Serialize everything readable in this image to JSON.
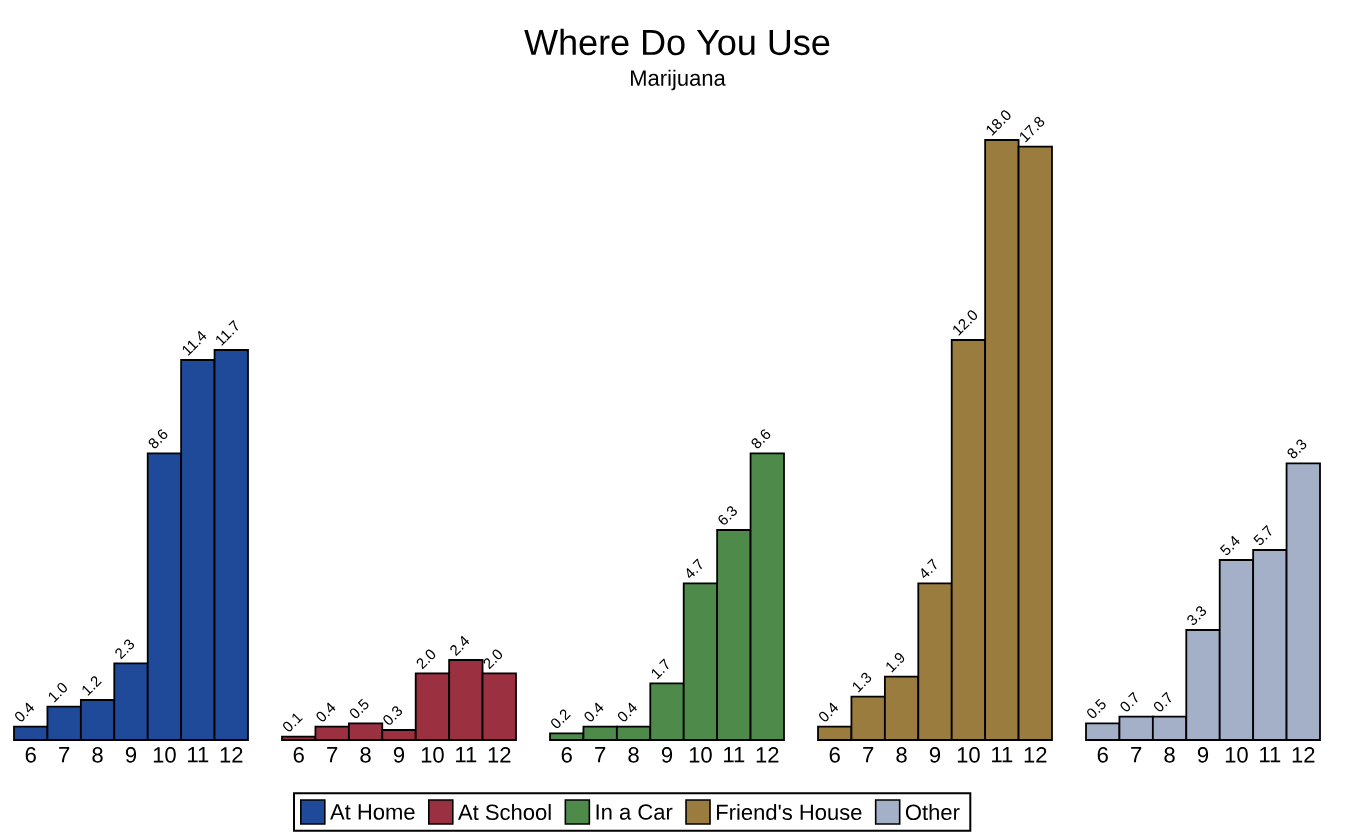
{
  "chart_data": [
    {
      "type": "bar",
      "categories": [
        "6",
        "7",
        "8",
        "9",
        "10",
        "11",
        "12"
      ],
      "legend": "bottom",
      "series": [
        {
          "name": "At Home",
          "color": "#1f4a9a",
          "values": [
            0.4,
            1.0,
            1.2,
            2.3,
            8.6,
            11.4,
            11.7
          ],
          "value_labels": [
            "0.4",
            "1.0",
            "1.2",
            "2.3",
            "8.6",
            "11.4",
            "11.7"
          ]
        }
      ]
    },
    {
      "type": "bar",
      "categories": [
        "6",
        "7",
        "8",
        "9",
        "10",
        "11",
        "12"
      ],
      "legend": "bottom",
      "series": [
        {
          "name": "At School",
          "color": "#9b3040",
          "values": [
            0.1,
            0.4,
            0.5,
            0.3,
            2.0,
            2.4,
            2.0
          ],
          "value_labels": [
            "0.1",
            "0.4",
            "0.5",
            "0.3",
            "2.0",
            "2.4",
            "2.0"
          ]
        }
      ]
    },
    {
      "type": "bar",
      "title": "Where Do You Use",
      "subtitle": "Marijuana",
      "categories": [
        "6",
        "7",
        "8",
        "9",
        "10",
        "11",
        "12"
      ],
      "legend": "bottom",
      "series": [
        {
          "name": "In a Car",
          "color": "#4e8a4a",
          "values": [
            0.2,
            0.4,
            0.4,
            1.7,
            4.7,
            6.3,
            8.6
          ],
          "value_labels": [
            "0.2",
            "0.4",
            "0.4",
            "1.7",
            "4.7",
            "6.3",
            "8.6"
          ]
        }
      ]
    },
    {
      "type": "bar",
      "categories": [
        "6",
        "7",
        "8",
        "9",
        "10",
        "11",
        "12"
      ],
      "legend": "bottom",
      "series": [
        {
          "name": "Friend's House",
          "color": "#9a7d3e",
          "values": [
            0.4,
            1.3,
            1.9,
            4.7,
            12.0,
            18.0,
            17.8
          ],
          "value_labels": [
            "0.4",
            "1.3",
            "1.9",
            "4.7",
            "12.0",
            "18.0",
            "17.8"
          ]
        }
      ]
    },
    {
      "type": "bar",
      "categories": [
        "6",
        "7",
        "8",
        "9",
        "10",
        "11",
        "12"
      ],
      "legend": "bottom",
      "series": [
        {
          "name": "Other",
          "color": "#a3b0c8",
          "values": [
            0.5,
            0.7,
            0.7,
            3.3,
            5.4,
            5.7,
            8.3
          ],
          "value_labels": [
            "0.5",
            "0.7",
            "0.7",
            "3.3",
            "5.4",
            "5.7",
            "8.3"
          ]
        }
      ]
    }
  ]
}
